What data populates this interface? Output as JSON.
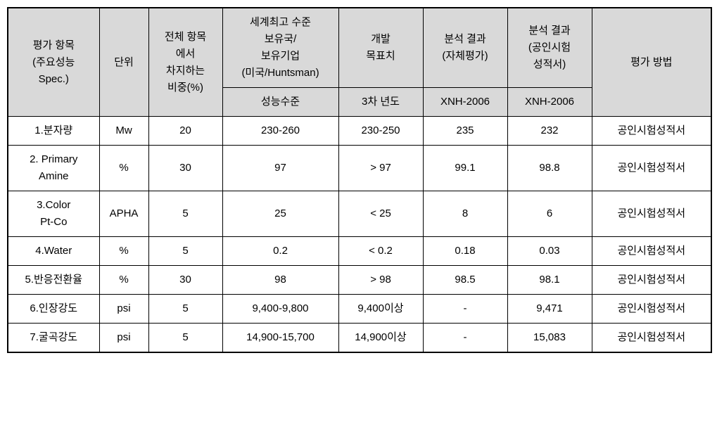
{
  "table": {
    "type": "table",
    "background_color": "#ffffff",
    "header_background_color": "#d9d9d9",
    "border_color": "#000000",
    "font_family": "Malgun Gothic",
    "header_fontsize": 15,
    "cell_fontsize": 15,
    "columns": {
      "col1": {
        "header": "평가 항목\n(주요성능\nSpec.)",
        "width": 130
      },
      "col2": {
        "header": "단위",
        "width": 70
      },
      "col3": {
        "header": "전체 항목\n에서\n차지하는\n비중(%)",
        "width": 105
      },
      "col4": {
        "header_top": "세계최고 수준\n보유국/\n보유기업\n(미국/Huntsman)",
        "header_bottom": "성능수준",
        "width": 165
      },
      "col5": {
        "header_top": "개발\n목표치",
        "header_bottom": "3차 년도",
        "width": 120
      },
      "col6": {
        "header_top": "분석 결과\n(자체평가)",
        "header_bottom": "XNH-2006",
        "width": 120
      },
      "col7": {
        "header_top": "분석 결과\n(공인시험\n성적서)",
        "header_bottom": "XNH-2006",
        "width": 120
      },
      "col8": {
        "header": "평가 방법",
        "width": 170
      }
    },
    "rows": [
      {
        "item": "1.분자량",
        "unit": "Mw",
        "weight": "20",
        "world_level": "230-260",
        "target": "230-250",
        "result_self": "235",
        "result_cert": "232",
        "method": "공인시험성적서"
      },
      {
        "item": "2. Primary\nAmine",
        "unit": "%",
        "weight": "30",
        "world_level": "97",
        "target": "> 97",
        "result_self": "99.1",
        "result_cert": "98.8",
        "method": "공인시험성적서"
      },
      {
        "item": "3.Color\nPt-Co",
        "unit": "APHA",
        "weight": "5",
        "world_level": "25",
        "target": "< 25",
        "result_self": "8",
        "result_cert": "6",
        "method": "공인시험성적서"
      },
      {
        "item": "4.Water",
        "unit": "%",
        "weight": "5",
        "world_level": "0.2",
        "target": "< 0.2",
        "result_self": "0.18",
        "result_cert": "0.03",
        "method": "공인시험성적서"
      },
      {
        "item": "5.반응전환율",
        "unit": "%",
        "weight": "30",
        "world_level": "98",
        "target": "> 98",
        "result_self": "98.5",
        "result_cert": "98.1",
        "method": "공인시험성적서"
      },
      {
        "item": "6.인장강도",
        "unit": "psi",
        "weight": "5",
        "world_level": "9,400-9,800",
        "target": "9,400이상",
        "result_self": "-",
        "result_cert": "9,471",
        "method": "공인시험성적서"
      },
      {
        "item": "7.굴곡강도",
        "unit": "psi",
        "weight": "5",
        "world_level": "14,900-15,700",
        "target": "14,900이상",
        "result_self": "-",
        "result_cert": "15,083",
        "method": "공인시험성적서"
      }
    ]
  }
}
